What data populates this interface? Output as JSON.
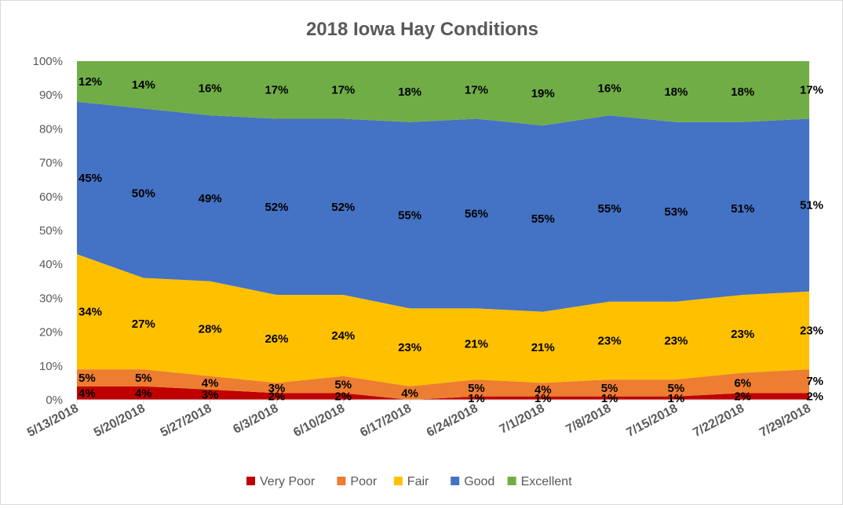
{
  "chart_data": {
    "type": "area",
    "stacked": true,
    "percent": true,
    "title": "2018 Iowa Hay Conditions",
    "categories": [
      "5/13/2018",
      "5/20/2018",
      "5/27/2018",
      "6/3/2018",
      "6/10/2018",
      "6/17/2018",
      "6/24/2018",
      "7/1/2018",
      "7/8/2018",
      "7/15/2018",
      "7/22/2018",
      "7/29/2018"
    ],
    "y_ticks": [
      "0%",
      "10%",
      "20%",
      "30%",
      "40%",
      "50%",
      "60%",
      "70%",
      "80%",
      "90%",
      "100%"
    ],
    "ylim": [
      0,
      100
    ],
    "legend_position": "bottom",
    "series": [
      {
        "name": "Very Poor",
        "color": "#c00000",
        "values": [
          4,
          4,
          3,
          2,
          2,
          0,
          1,
          1,
          1,
          1,
          2,
          2
        ],
        "labels": [
          "4%",
          "4%",
          "3%",
          "2%",
          "2%",
          "",
          "1%",
          "1%",
          "1%",
          "1%",
          "2%",
          "2%"
        ]
      },
      {
        "name": "Poor",
        "color": "#ed7d31",
        "values": [
          5,
          5,
          4,
          3,
          5,
          4,
          5,
          4,
          5,
          5,
          6,
          7
        ],
        "labels": [
          "5%",
          "5%",
          "4%",
          "3%",
          "5%",
          "4%",
          "5%",
          "4%",
          "5%",
          "5%",
          "6%",
          "7%"
        ]
      },
      {
        "name": "Fair",
        "color": "#ffc000",
        "values": [
          34,
          27,
          28,
          26,
          24,
          23,
          21,
          21,
          23,
          23,
          23,
          23
        ],
        "labels": [
          "34%",
          "27%",
          "28%",
          "26%",
          "24%",
          "23%",
          "21%",
          "21%",
          "23%",
          "23%",
          "23%",
          "23%"
        ]
      },
      {
        "name": "Good",
        "color": "#4472c4",
        "values": [
          45,
          50,
          49,
          52,
          52,
          55,
          56,
          55,
          55,
          53,
          51,
          51
        ],
        "labels": [
          "45%",
          "50%",
          "49%",
          "52%",
          "52%",
          "55%",
          "56%",
          "55%",
          "55%",
          "53%",
          "51%",
          "51%"
        ]
      },
      {
        "name": "Excellent",
        "color": "#70ad47",
        "values": [
          12,
          14,
          16,
          17,
          17,
          18,
          17,
          19,
          16,
          18,
          18,
          17
        ],
        "labels": [
          "12%",
          "14%",
          "16%",
          "17%",
          "17%",
          "18%",
          "17%",
          "19%",
          "16%",
          "18%",
          "18%",
          "17%"
        ]
      }
    ]
  }
}
